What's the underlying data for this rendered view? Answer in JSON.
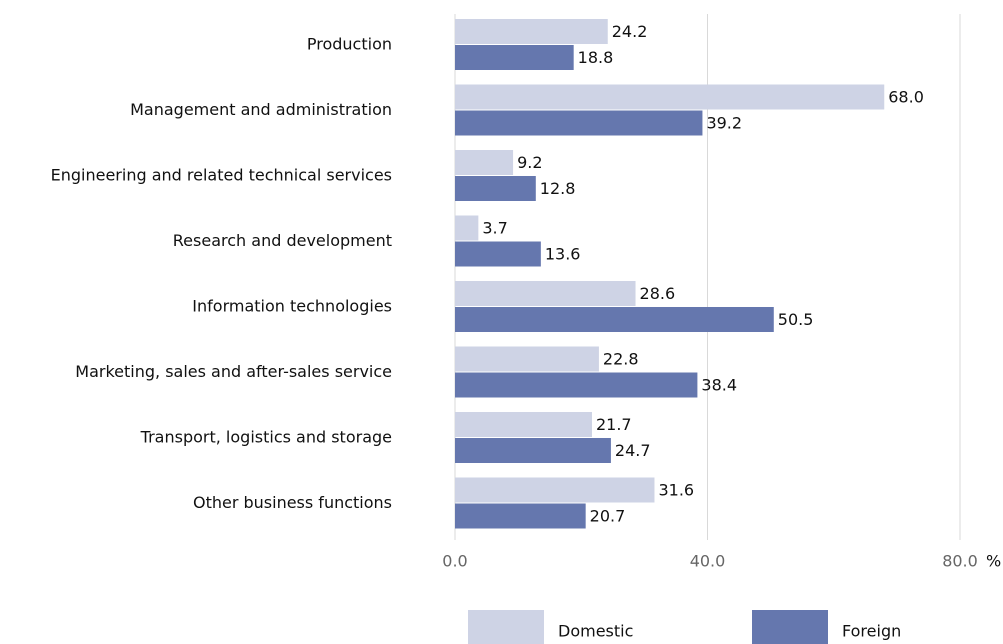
{
  "chart_data": {
    "type": "hbar",
    "categories": [
      "Production",
      "Management and administration",
      "Engineering and related technical services",
      "Research and development",
      "Information technologies",
      "Marketing, sales and after-sales service",
      "Transport, logistics and storage",
      "Other business functions"
    ],
    "series": [
      {
        "name": "Domestic",
        "color": "#ced3e5",
        "values": [
          24.2,
          68.0,
          9.2,
          3.7,
          28.6,
          22.8,
          21.7,
          31.6
        ],
        "value_labels": [
          "24.2",
          "68.0",
          "9.2",
          "3.7",
          "28.6",
          "22.8",
          "21.7",
          "31.6"
        ]
      },
      {
        "name": "Foreign",
        "color": "#6577ae",
        "values": [
          18.8,
          39.2,
          12.8,
          13.6,
          50.5,
          38.4,
          24.7,
          20.7
        ],
        "value_labels": [
          "18.8",
          "39.2",
          "12.8",
          "13.6",
          "50.5",
          "38.4",
          "24.7",
          "20.7"
        ]
      }
    ],
    "xlim": [
      0,
      80
    ],
    "xticks": [
      {
        "value": 0,
        "label": "0.0"
      },
      {
        "value": 40,
        "label": "40.0"
      },
      {
        "value": 80,
        "label": "80.0"
      }
    ],
    "x_unit": "%",
    "grid": true
  }
}
